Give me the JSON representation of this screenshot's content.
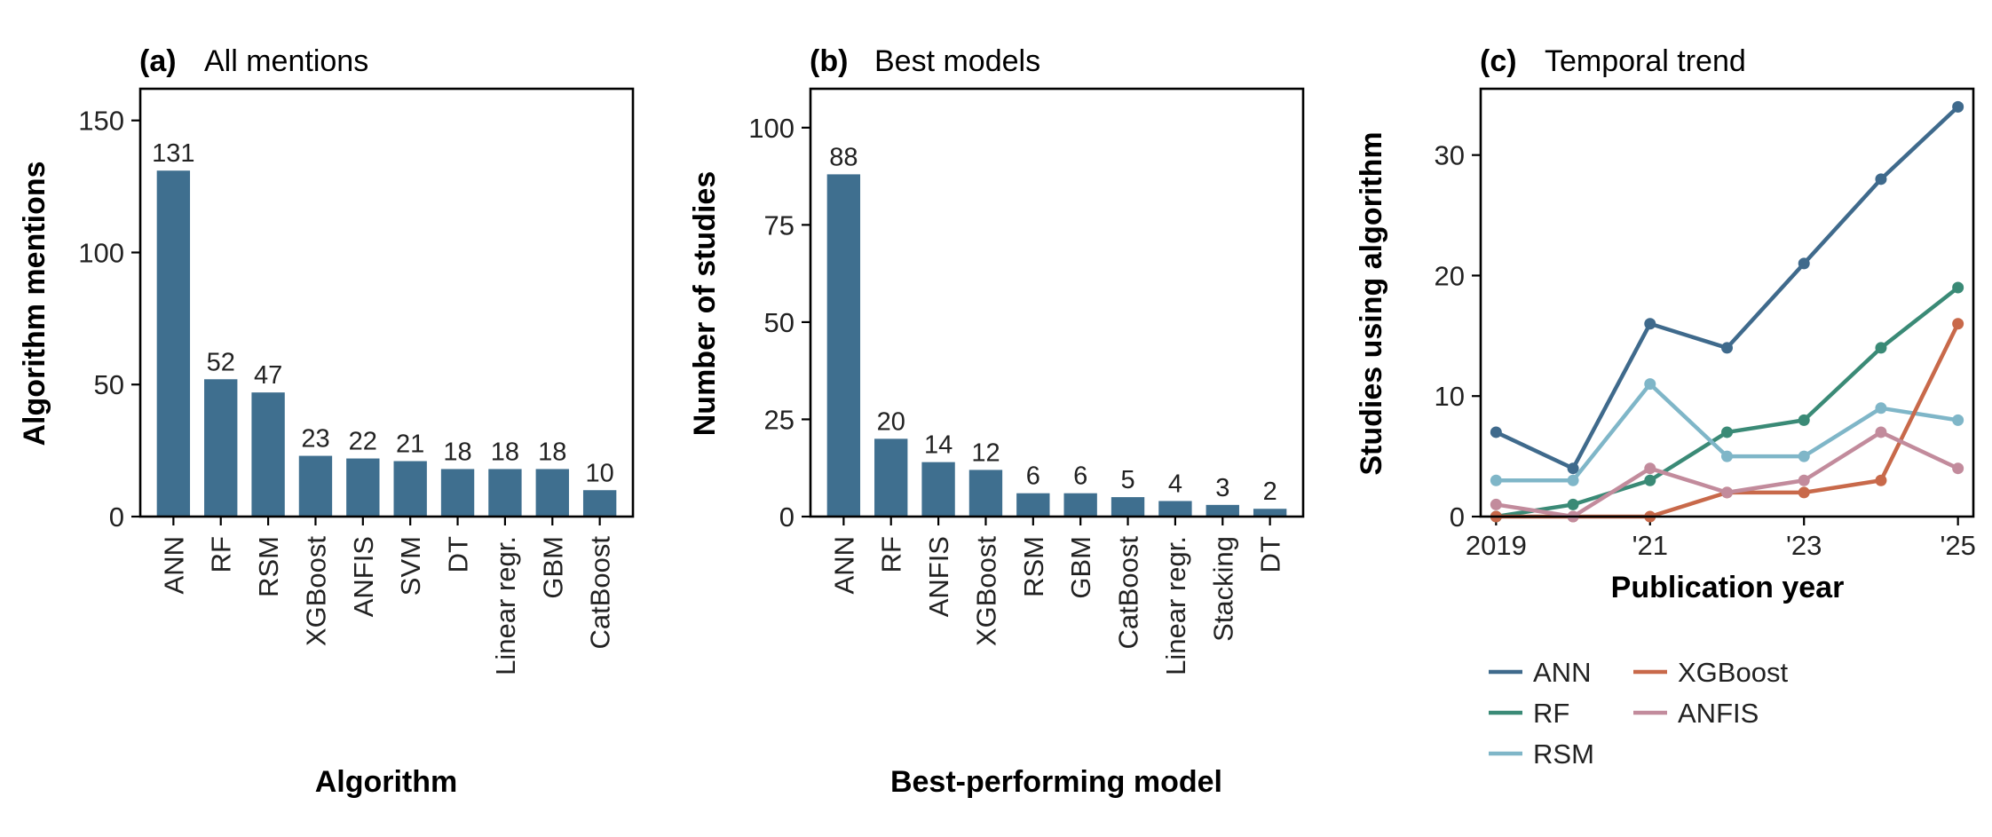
{
  "colors": {
    "bar": "#3f6f8f",
    "text": "#333e48",
    "axis": "#000000",
    "ANN": "#3f6a8c",
    "RF": "#3a8a76",
    "RSM": "#7fb6c8",
    "XGBoost": "#c8694a",
    "ANFIS": "#c28b9c"
  },
  "chart_data": [
    {
      "type": "bar",
      "panel_letter": "(a)",
      "title": "All mentions",
      "xlabel": "Algorithm",
      "ylabel": "Algorithm mentions",
      "categories": [
        "ANN",
        "RF",
        "RSM",
        "XGBoost",
        "ANFIS",
        "SVM",
        "DT",
        "Linear regr.",
        "GBM",
        "CatBoost"
      ],
      "values": [
        131,
        52,
        47,
        23,
        22,
        21,
        18,
        18,
        18,
        10
      ],
      "value_labels": [
        "131",
        "52",
        "47",
        "23",
        "22",
        "21",
        "18",
        "18",
        "18",
        "10"
      ],
      "ylim": [
        0,
        162
      ],
      "yticks": [
        0,
        50,
        100,
        150
      ],
      "ytick_labels": [
        "0",
        "50",
        "100",
        "150"
      ],
      "grid": false
    },
    {
      "type": "bar",
      "panel_letter": "(b)",
      "title": "Best models",
      "xlabel": "Best-performing model",
      "ylabel": "Number of studies",
      "categories": [
        "ANN",
        "RF",
        "ANFIS",
        "XGBoost",
        "RSM",
        "GBM",
        "CatBoost",
        "Linear regr.",
        "Stacking",
        "DT"
      ],
      "values": [
        88,
        20,
        14,
        12,
        6,
        6,
        5,
        4,
        3,
        2
      ],
      "value_labels": [
        "88",
        "20",
        "14",
        "12",
        "6",
        "6",
        "5",
        "4",
        "3",
        "2"
      ],
      "ylim": [
        0,
        110
      ],
      "yticks": [
        0,
        25,
        50,
        75,
        100
      ],
      "ytick_labels": [
        "0",
        "25",
        "50",
        "75",
        "100"
      ],
      "grid": false
    },
    {
      "type": "line",
      "panel_letter": "(c)",
      "title": "Temporal trend",
      "xlabel": "Publication year",
      "ylabel": "Studies using algorithm",
      "x": [
        2019,
        2020,
        2021,
        2022,
        2023,
        2024,
        2025
      ],
      "xticks": [
        2019,
        2021,
        2023,
        2025
      ],
      "xtick_labels": [
        "2019",
        "'21",
        "'23",
        "'25"
      ],
      "xlim": [
        2018.8,
        2025.2
      ],
      "ylim": [
        0,
        35.5
      ],
      "yticks": [
        0,
        10,
        20,
        30
      ],
      "ytick_labels": [
        "0",
        "10",
        "20",
        "30"
      ],
      "legend_position": "below",
      "grid": false,
      "series": [
        {
          "name": "ANN",
          "values": [
            7,
            4,
            16,
            14,
            21,
            28,
            34
          ]
        },
        {
          "name": "RF",
          "values": [
            0,
            1,
            3,
            7,
            8,
            14,
            19
          ]
        },
        {
          "name": "RSM",
          "values": [
            3,
            3,
            11,
            5,
            5,
            9,
            8
          ]
        },
        {
          "name": "XGBoost",
          "values": [
            0,
            0,
            0,
            2,
            2,
            3,
            16
          ]
        },
        {
          "name": "ANFIS",
          "values": [
            1,
            0,
            4,
            2,
            3,
            7,
            4
          ]
        }
      ],
      "legend_order": [
        "ANN",
        "XGBoost",
        "RF",
        "ANFIS",
        "RSM"
      ]
    }
  ]
}
